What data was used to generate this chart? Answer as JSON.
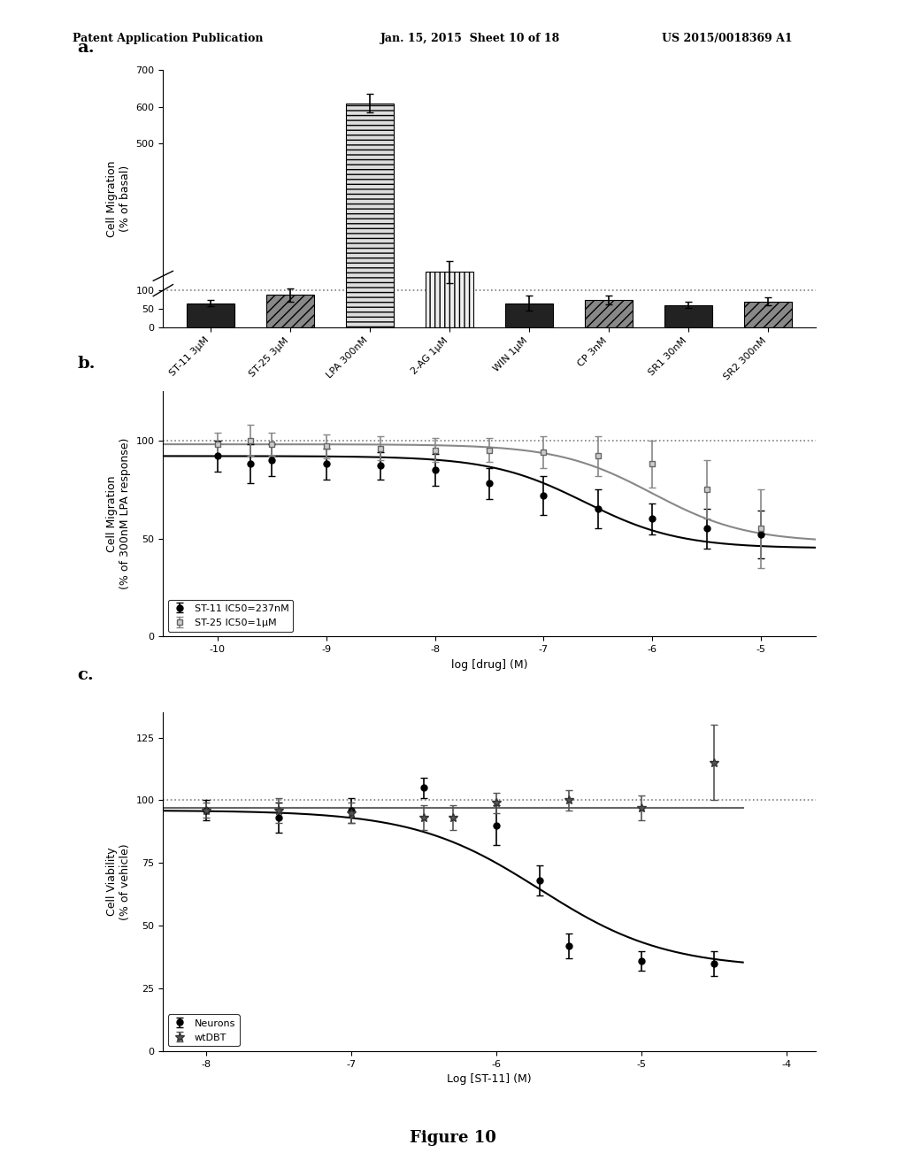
{
  "header_left": "Patent Application Publication",
  "header_mid": "Jan. 15, 2015  Sheet 10 of 18",
  "header_right": "US 2015/0018369 A1",
  "figure_label": "Figure 10",
  "panel_a": {
    "label": "a.",
    "categories": [
      "ST-11 3μM",
      "ST-25 3μM",
      "LPA 300nM",
      "2-AG 1μM",
      "WIN 1μM",
      "CP 3nM",
      "SR1 30nM",
      "SR2 300nM"
    ],
    "values": [
      65,
      88,
      610,
      150,
      65,
      73,
      60,
      70
    ],
    "errors": [
      8,
      18,
      25,
      30,
      20,
      12,
      8,
      10
    ],
    "ylabel": "Cell Migration\n(% of basal)",
    "ylim": [
      0,
      700
    ],
    "yticks": [
      0,
      50,
      100,
      500,
      600,
      700
    ],
    "dashed_line_y": 100,
    "bar_patterns": [
      "solid_dark",
      "hatch_diag",
      "hatch_horiz",
      "hatch_vert",
      "solid_dark",
      "hatch_diag",
      "solid_dark",
      "hatch_diag"
    ],
    "bar_colors": [
      "#222222",
      "#888888",
      "#cccccc",
      "#aaaaaa",
      "#222222",
      "#888888",
      "#222222",
      "#888888"
    ]
  },
  "panel_b": {
    "label": "b.",
    "ylabel": "Cell Migration\n(% of 300nM LPA response)",
    "xlabel": "log [drug] (M)",
    "xlim": [
      -10.5,
      -4.5
    ],
    "ylim": [
      0,
      125
    ],
    "yticks": [
      0,
      50,
      100
    ],
    "xticks": [
      -10,
      -9,
      -8,
      -7,
      -6,
      -5
    ],
    "dashed_line_y": 100,
    "st11_x": [
      -10,
      -9.7,
      -9.5,
      -9,
      -8.5,
      -8,
      -7.5,
      -7,
      -6.5,
      -6,
      -5.5,
      -5
    ],
    "st11_y": [
      92,
      88,
      90,
      88,
      87,
      85,
      78,
      72,
      65,
      60,
      55,
      52
    ],
    "st11_err": [
      8,
      10,
      8,
      8,
      7,
      8,
      8,
      10,
      10,
      8,
      10,
      12
    ],
    "st25_x": [
      -10,
      -9.7,
      -9.5,
      -9,
      -8.5,
      -8,
      -7.5,
      -7,
      -6.5,
      -6,
      -5.5,
      -5
    ],
    "st25_y": [
      98,
      100,
      98,
      97,
      96,
      95,
      95,
      94,
      92,
      88,
      75,
      55
    ],
    "st25_err": [
      6,
      8,
      6,
      6,
      6,
      6,
      6,
      8,
      10,
      12,
      15,
      20
    ],
    "legend_st11": "ST-11 IC50=237nM",
    "legend_st25": "ST-25 IC50=1μM"
  },
  "panel_c": {
    "label": "c.",
    "ylabel": "Cell Viability\n(% of vehicle)",
    "xlabel": "Log [ST-11] (M)",
    "xlim": [
      -8.3,
      -3.8
    ],
    "ylim": [
      0,
      135
    ],
    "yticks": [
      0,
      25,
      50,
      75,
      100,
      125
    ],
    "xticks": [
      -8,
      -7,
      -6,
      -5,
      -4
    ],
    "dashed_line_y": 100,
    "neurons_x": [
      -8,
      -7.5,
      -7,
      -6.5,
      -6,
      -5.7,
      -5.5,
      -5,
      -4.5
    ],
    "neurons_y": [
      96,
      93,
      96,
      105,
      90,
      68,
      42,
      36,
      35
    ],
    "neurons_err": [
      4,
      6,
      5,
      4,
      8,
      6,
      5,
      4,
      5
    ],
    "wtdbt_x": [
      -8,
      -7.5,
      -7,
      -6.5,
      -6.3,
      -6,
      -5.5,
      -5,
      -4.5
    ],
    "wtdbt_y": [
      96,
      96,
      95,
      93,
      93,
      99,
      100,
      97,
      115
    ],
    "wtdbt_err": [
      3,
      5,
      4,
      5,
      5,
      4,
      4,
      5,
      15
    ],
    "legend_neurons": "Neurons",
    "legend_wtdbt": "wtDBT"
  }
}
